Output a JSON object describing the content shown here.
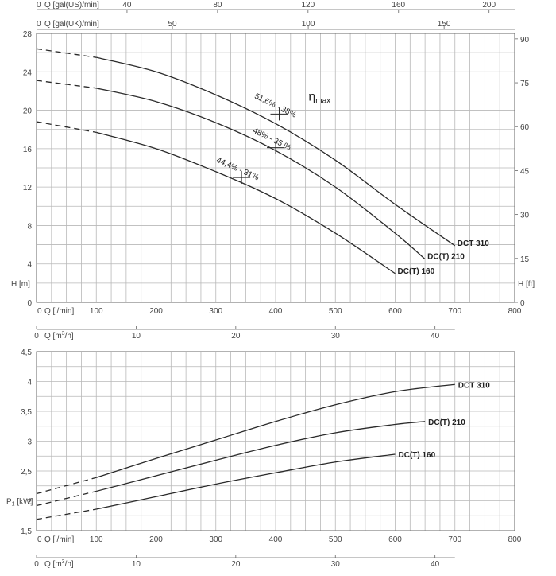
{
  "chart_data": [
    {
      "type": "line",
      "title": "",
      "ylabel": "H [m]",
      "ylabel_right": "H [ft]",
      "xlabel": "Q [l/min]",
      "xlabel_secondary": "Q [m3/h]",
      "xlabel_top_us": "Q [gal(US)/min]",
      "xlabel_top_uk": "Q [gal(UK)/min]",
      "xlim": [
        0,
        800
      ],
      "ylim": [
        0,
        28
      ],
      "grid": true,
      "x_ticks": [
        0,
        100,
        200,
        300,
        400,
        500,
        600,
        700,
        800
      ],
      "x_ticks_m3h": [
        0,
        10,
        20,
        30,
        40
      ],
      "top_ticks_us": [
        40,
        80,
        120,
        160,
        200
      ],
      "top_ticks_uk": [
        50,
        100,
        150
      ],
      "y_ticks": [
        0,
        4,
        8,
        12,
        16,
        20,
        24,
        28
      ],
      "y_ticks_ft": [
        0,
        15,
        30,
        45,
        60,
        75,
        90
      ],
      "series": [
        {
          "name": "DCT 310",
          "x": [
            0,
            100,
            200,
            300,
            400,
            500,
            600,
            700
          ],
          "y": [
            26.4,
            25.5,
            24.0,
            21.6,
            18.6,
            14.8,
            10.2,
            5.9
          ],
          "dashed_until": 100
        },
        {
          "name": "DC(T) 210",
          "x": [
            0,
            100,
            200,
            300,
            400,
            500,
            600,
            650
          ],
          "y": [
            23.1,
            22.3,
            20.9,
            18.7,
            15.8,
            12.0,
            7.2,
            4.5
          ],
          "dashed_until": 100
        },
        {
          "name": "DC(T) 160",
          "x": [
            0,
            100,
            200,
            300,
            400,
            500,
            600
          ],
          "y": [
            18.8,
            17.7,
            16.0,
            13.6,
            10.8,
            7.2,
            3.0
          ],
          "dashed_until": 100
        }
      ],
      "efficiency_label": "ηmax",
      "annotations": [
        {
          "text": "51,6% - 38%",
          "x": 406,
          "y": 19.6
        },
        {
          "text": "48% - 35 %",
          "x": 400,
          "y": 16.1
        },
        {
          "text": "44,4% - 31%",
          "x": 343,
          "y": 13.0
        }
      ]
    },
    {
      "type": "line",
      "title": "",
      "ylabel": "P1 [kW]",
      "xlabel": "Q [l/min]",
      "xlabel_secondary": "Q [m3/h]",
      "xlim": [
        0,
        800
      ],
      "ylim": [
        1.5,
        4.5
      ],
      "grid": true,
      "x_ticks": [
        0,
        100,
        200,
        300,
        400,
        500,
        600,
        700,
        800
      ],
      "x_ticks_m3h": [
        0,
        10,
        20,
        30,
        40
      ],
      "y_ticks": [
        1.5,
        2,
        2.5,
        3,
        3.5,
        4,
        4.5
      ],
      "y_tick_labels": [
        "1,5",
        "2",
        "2,5",
        "3",
        "3,5",
        "4",
        "4,5"
      ],
      "series": [
        {
          "name": "DCT 310",
          "x": [
            0,
            100,
            200,
            300,
            400,
            500,
            600,
            700
          ],
          "y": [
            2.12,
            2.39,
            2.71,
            3.02,
            3.33,
            3.61,
            3.83,
            3.95
          ],
          "dashed_until": 100
        },
        {
          "name": "DC(T) 210",
          "x": [
            0,
            100,
            200,
            300,
            400,
            500,
            600,
            650
          ],
          "y": [
            1.92,
            2.16,
            2.42,
            2.68,
            2.93,
            3.14,
            3.28,
            3.33
          ],
          "dashed_until": 100
        },
        {
          "name": "DC(T) 160",
          "x": [
            0,
            100,
            200,
            300,
            400,
            500,
            600
          ],
          "y": [
            1.69,
            1.86,
            2.07,
            2.28,
            2.47,
            2.65,
            2.78
          ],
          "dashed_until": 100
        }
      ]
    }
  ]
}
